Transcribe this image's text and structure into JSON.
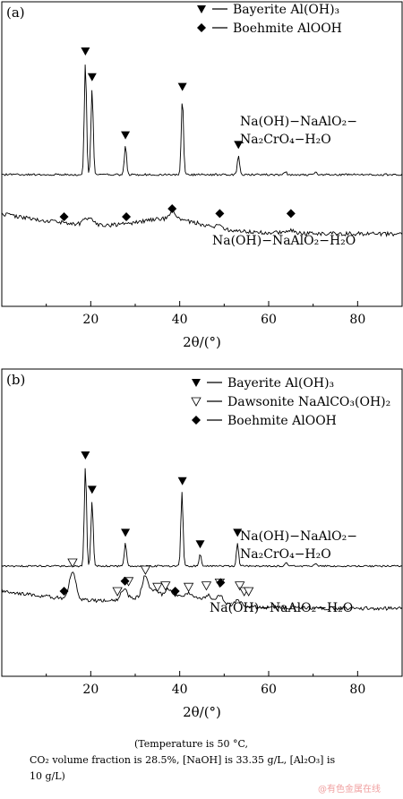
{
  "chart_data": [
    {
      "type": "line",
      "panel_label": "(a)",
      "xlabel": "2θ/(°)",
      "xlim": [
        0,
        90
      ],
      "xticks": [
        20,
        40,
        60,
        80
      ],
      "legend": [
        {
          "marker": "▼",
          "text": "Bayerite Al(OH)₃"
        },
        {
          "marker": "◆",
          "text": "Boehmite AlOOH"
        }
      ],
      "series": [
        {
          "name": "Na(OH)−NaAlO₂−Na₂CrO₄−H₂O",
          "label_lines": [
            "Na(OH)−NaAlO₂−",
            "Na₂CrO₄−H₂O"
          ],
          "baseline": 1.0,
          "peaks": [
            [
              18.8,
              7.0
            ],
            [
              20.3,
              5.4
            ],
            [
              27.8,
              1.8
            ],
            [
              40.6,
              4.8
            ],
            [
              53.2,
              1.2
            ],
            [
              63.8,
              0.2
            ],
            [
              70.6,
              0.2
            ]
          ],
          "markers": [
            {
              "symbol": "bayerite",
              "x": 18.8
            },
            {
              "symbol": "bayerite",
              "x": 20.3
            },
            {
              "symbol": "bayerite",
              "x": 27.8
            },
            {
              "symbol": "bayerite",
              "x": 40.6
            },
            {
              "symbol": "bayerite",
              "x": 53.2
            }
          ]
        },
        {
          "name": "Na(OH)−NaAlO₂−H₂O",
          "label_lines": [
            "Na(OH)−NaAlO₂−H₂O"
          ],
          "baseline": -1.8,
          "peaks": [
            [
              18.9,
              0.3
            ],
            [
              20.4,
              0.3
            ],
            [
              38.5,
              0.5
            ],
            [
              49.0,
              0.2
            ],
            [
              65.0,
              0.2
            ]
          ],
          "markers": [
            {
              "symbol": "boehmite",
              "x": 14.0
            },
            {
              "symbol": "boehmite",
              "x": 28.0
            },
            {
              "symbol": "boehmite",
              "x": 38.3
            },
            {
              "symbol": "boehmite",
              "x": 49.0
            },
            {
              "symbol": "boehmite",
              "x": 65.0
            }
          ]
        }
      ]
    },
    {
      "type": "line",
      "panel_label": "(b)",
      "xlabel": "2θ/(°)",
      "xlim": [
        0,
        90
      ],
      "xticks": [
        20,
        40,
        60,
        80
      ],
      "legend": [
        {
          "marker": "▼",
          "text": "Bayerite Al(OH)₃"
        },
        {
          "marker": "▽",
          "text": "Dawsonite NaAlCO₃(OH)₂"
        },
        {
          "marker": "◆",
          "text": "Boehmite AlOOH"
        }
      ],
      "series": [
        {
          "name": "Na(OH)−NaAlO₂−Na₂CrO₄−H₂O",
          "label_lines": [
            "Na(OH)−NaAlO₂−",
            "Na₂CrO₄−H₂O"
          ],
          "baseline": 1.0,
          "peaks": [
            [
              18.8,
              7.0
            ],
            [
              20.3,
              4.6
            ],
            [
              27.8,
              1.6
            ],
            [
              40.5,
              5.2
            ],
            [
              44.6,
              0.8
            ],
            [
              53.0,
              1.6
            ],
            [
              63.9,
              0.3
            ],
            [
              70.5,
              0.2
            ]
          ],
          "markers": [
            {
              "symbol": "bayerite",
              "x": 18.8
            },
            {
              "symbol": "bayerite",
              "x": 20.3
            },
            {
              "symbol": "bayerite",
              "x": 27.8
            },
            {
              "symbol": "bayerite",
              "x": 40.6
            },
            {
              "symbol": "bayerite",
              "x": 44.6
            },
            {
              "symbol": "bayerite",
              "x": 53.0
            }
          ]
        },
        {
          "name": "Na(OH)−NaAlO₂−H₂O",
          "label_lines": [
            "Na(OH)−NaAlO₂−H₂O"
          ],
          "baseline": -1.8,
          "peaks": [
            [
              15.9,
              2.0
            ],
            [
              27.5,
              0.7
            ],
            [
              32.3,
              1.5
            ],
            [
              34.5,
              0.3
            ],
            [
              37.5,
              0.4
            ],
            [
              42.4,
              0.3
            ],
            [
              46.5,
              0.4
            ],
            [
              49.0,
              0.6
            ],
            [
              53.0,
              0.4
            ]
          ],
          "markers": [
            {
              "symbol": "dawsonite",
              "x": 15.9
            },
            {
              "symbol": "dawsonite",
              "x": 26.0
            },
            {
              "symbol": "dawsonite",
              "x": 28.5
            },
            {
              "symbol": "dawsonite",
              "x": 32.3
            },
            {
              "symbol": "dawsonite",
              "x": 35.0
            },
            {
              "symbol": "dawsonite",
              "x": 36.8
            },
            {
              "symbol": "dawsonite",
              "x": 42.0
            },
            {
              "symbol": "dawsonite",
              "x": 46.0
            },
            {
              "symbol": "dawsonite",
              "x": 49.0
            },
            {
              "symbol": "dawsonite",
              "x": 53.5
            },
            {
              "symbol": "dawsonite",
              "x": 54.5
            },
            {
              "symbol": "dawsonite",
              "x": 55.5
            },
            {
              "symbol": "boehmite",
              "x": 14.0
            },
            {
              "symbol": "boehmite",
              "x": 27.7
            },
            {
              "symbol": "boehmite",
              "x": 39.0
            },
            {
              "symbol": "boehmite",
              "x": 49.2
            }
          ]
        }
      ]
    }
  ],
  "caption": {
    "line1": "(Temperature is 50 °C,",
    "line2": "CO₂ volume fraction is 28.5%, [NaOH] is 33.35 g/L, [Al₂O₃] is",
    "line3": "10 g/L)"
  },
  "watermark": "@有色金属在线"
}
